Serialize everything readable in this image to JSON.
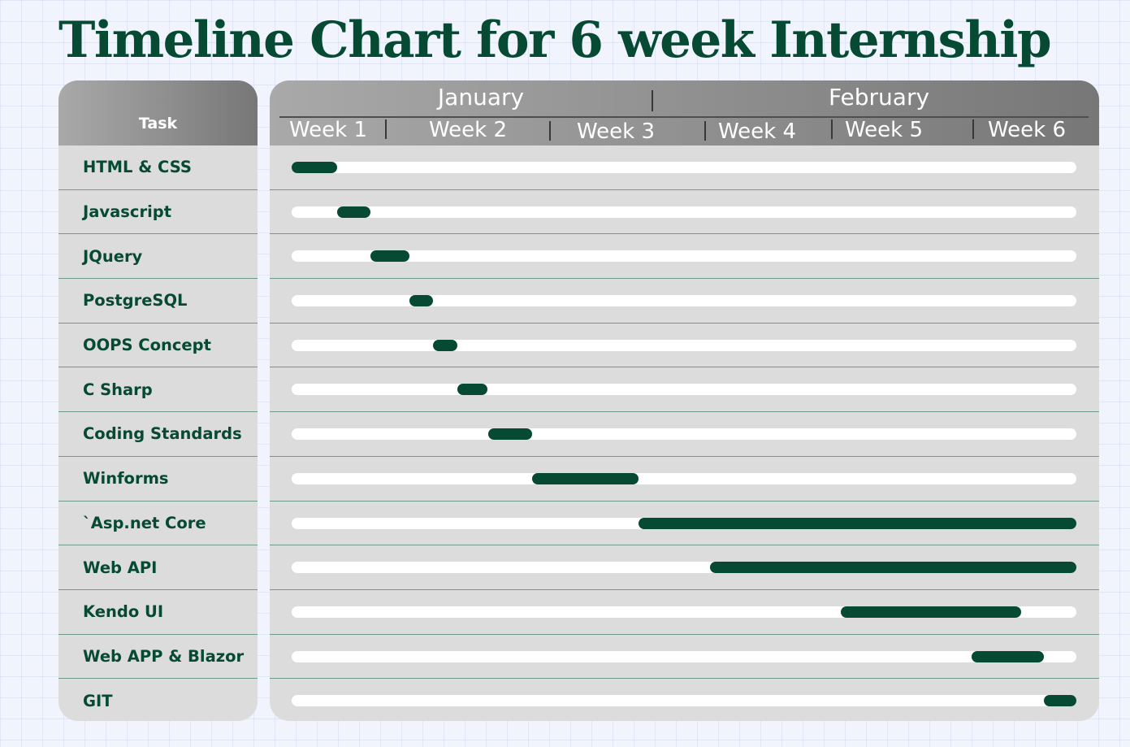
{
  "title": "Timeline Chart for 6 week Internship",
  "colors": {
    "title": "#064a33",
    "bar": "#064a33",
    "track": "#ffffff",
    "panel": "#dcdcdc",
    "header": "#8e8e8e"
  },
  "chart_data": {
    "type": "gantt",
    "title": "Timeline Chart for 6 week Internship",
    "task_header": "Task",
    "months": [
      "January",
      "February"
    ],
    "weeks": [
      "Week 1",
      "Week 2",
      "Week 3",
      "Week 4",
      "Week 5",
      "Week 6"
    ],
    "x_unit": "weeks",
    "xlim": [
      0,
      6
    ],
    "grid": false,
    "tasks": [
      {
        "name": "HTML & CSS",
        "start": 0.0,
        "end": 0.35
      },
      {
        "name": "Javascript",
        "start": 0.35,
        "end": 0.6
      },
      {
        "name": "JQuery",
        "start": 0.6,
        "end": 0.9
      },
      {
        "name": "PostgreSQL",
        "start": 0.9,
        "end": 1.08
      },
      {
        "name": "OOPS Concept",
        "start": 1.08,
        "end": 1.27
      },
      {
        "name": "C Sharp",
        "start": 1.27,
        "end": 1.5
      },
      {
        "name": "Coding Standards",
        "start": 1.5,
        "end": 1.84
      },
      {
        "name": "Winforms",
        "start": 1.84,
        "end": 2.65
      },
      {
        "name": "`Asp.net Core",
        "start": 2.65,
        "end": 6.0
      },
      {
        "name": "Web API",
        "start": 3.2,
        "end": 6.0
      },
      {
        "name": "Kendo UI",
        "start": 4.2,
        "end": 5.58
      },
      {
        "name": "Web APP & Blazor",
        "start": 5.2,
        "end": 5.75
      },
      {
        "name": "GIT",
        "start": 5.75,
        "end": 6.0
      }
    ]
  }
}
